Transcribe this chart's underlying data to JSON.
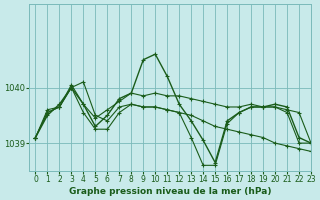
{
  "title": "Graphe pression niveau de la mer (hPa)",
  "bg_color": "#c8eaea",
  "grid_color": "#7ababa",
  "line_color": "#1a5c1a",
  "marker_color": "#1a5c1a",
  "label_color": "#1a5c1a",
  "ylim": [
    1038.5,
    1041.5
  ],
  "xlim": [
    -0.5,
    23
  ],
  "yticks": [
    1039,
    1040
  ],
  "xticks": [
    0,
    1,
    2,
    3,
    4,
    5,
    6,
    7,
    8,
    9,
    10,
    11,
    12,
    13,
    14,
    15,
    16,
    17,
    18,
    19,
    20,
    21,
    22,
    23
  ],
  "series": [
    [
      1039.1,
      1039.5,
      1039.7,
      1040.0,
      1039.7,
      1039.3,
      1039.5,
      1039.8,
      1039.9,
      1040.5,
      1040.6,
      1040.2,
      1039.7,
      1039.4,
      1039.05,
      1038.65,
      1039.4,
      1039.55,
      1039.65,
      1039.65,
      1039.7,
      1039.65,
      1039.1,
      1039.0
    ],
    [
      1039.1,
      1039.55,
      1039.65,
      1040.0,
      1040.1,
      1039.5,
      1039.4,
      1039.65,
      1039.7,
      1039.65,
      1039.65,
      1039.6,
      1039.55,
      1039.5,
      1039.4,
      1039.3,
      1039.25,
      1039.2,
      1039.15,
      1039.1,
      1039.0,
      1038.95,
      1038.9,
      1038.85
    ],
    [
      1039.1,
      1039.6,
      1039.65,
      1040.05,
      1039.7,
      1039.45,
      1039.6,
      1039.75,
      1039.9,
      1039.85,
      1039.9,
      1039.85,
      1039.85,
      1039.8,
      1039.75,
      1039.7,
      1039.65,
      1039.65,
      1039.7,
      1039.65,
      1039.65,
      1039.6,
      1039.55,
      1039.0
    ],
    [
      1039.1,
      1039.55,
      1039.65,
      1040.0,
      1039.55,
      1039.25,
      1039.25,
      1039.55,
      1039.7,
      1039.65,
      1039.65,
      1039.6,
      1039.55,
      1039.1,
      1038.6,
      1038.6,
      1039.35,
      1039.55,
      1039.65,
      1039.65,
      1039.65,
      1039.55,
      1039.0,
      1039.0
    ]
  ]
}
